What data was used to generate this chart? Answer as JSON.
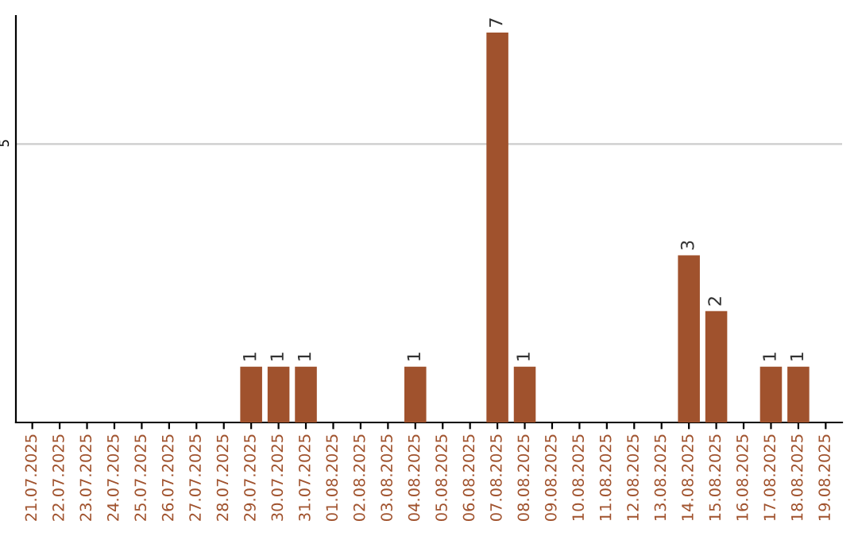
{
  "chart_data": {
    "type": "bar",
    "categories": [
      "21.07.2025",
      "22.07.2025",
      "23.07.2025",
      "24.07.2025",
      "25.07.2025",
      "26.07.2025",
      "27.07.2025",
      "28.07.2025",
      "29.07.2025",
      "30.07.2025",
      "31.07.2025",
      "01.08.2025",
      "02.08.2025",
      "03.08.2025",
      "04.08.2025",
      "05.08.2025",
      "06.08.2025",
      "07.08.2025",
      "08.08.2025",
      "09.08.2025",
      "10.08.2025",
      "11.08.2025",
      "12.08.2025",
      "13.08.2025",
      "14.08.2025",
      "15.08.2025",
      "16.08.2025",
      "17.08.2025",
      "18.08.2025",
      "19.08.2025"
    ],
    "values": [
      null,
      null,
      null,
      null,
      null,
      null,
      null,
      null,
      1,
      1,
      1,
      null,
      null,
      null,
      1,
      null,
      null,
      7,
      1,
      null,
      null,
      null,
      null,
      null,
      3,
      2,
      null,
      1,
      1,
      null
    ],
    "color": "#a0522d",
    "ylim": [
      0,
      7.3
    ],
    "yticks": [
      5
    ],
    "grid": "y",
    "data_labels": true
  }
}
